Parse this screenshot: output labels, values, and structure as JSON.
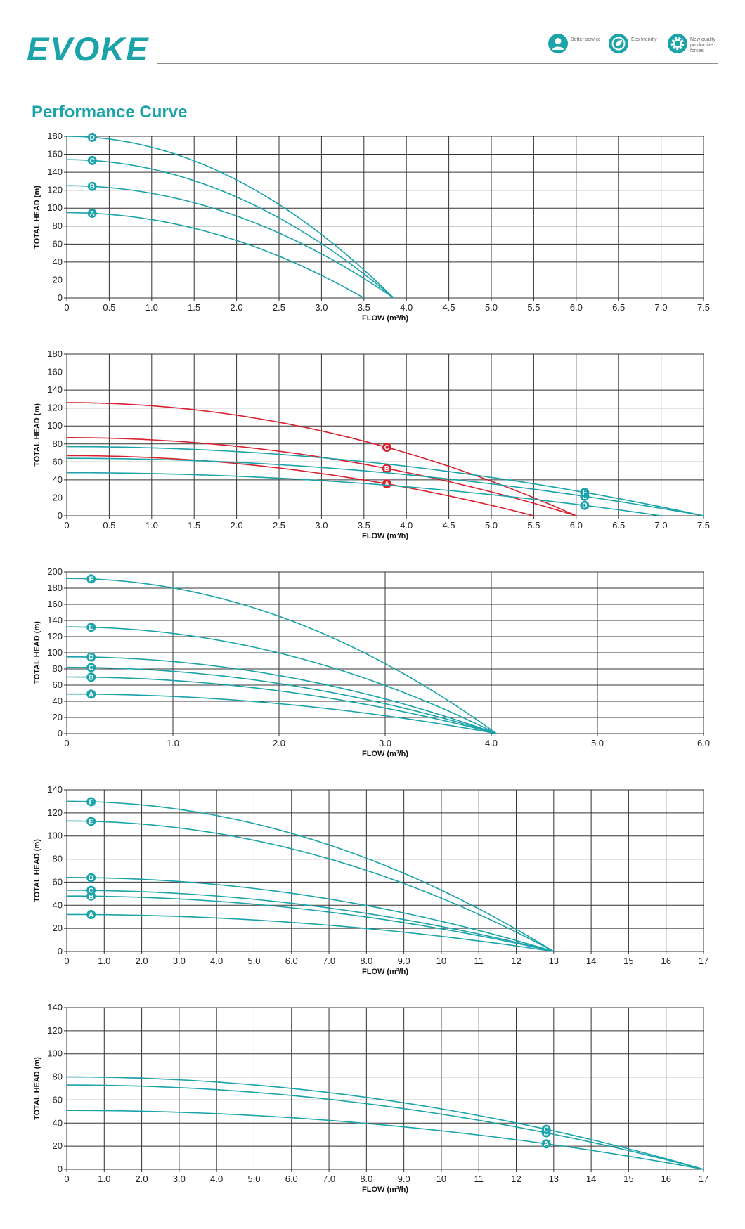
{
  "header": {
    "logo_text": "EVOKE",
    "brand_color": "#1ba3aa",
    "badges": [
      {
        "icon": "person-service-icon",
        "text": "Better service"
      },
      {
        "icon": "eco-leaf-icon",
        "text": "Eco friendly"
      },
      {
        "icon": "gear-icon",
        "text": "New quality productive forces"
      }
    ]
  },
  "page_title": "Performance Curve",
  "colors": {
    "teal": "#1ba3aa",
    "red": "#d8222f",
    "grid": "#333333"
  },
  "chart_data": [
    {
      "type": "line",
      "xlabel": "FLOW (m³/h)",
      "ylabel": "TOTAL  HEAD  (m)",
      "xlim": [
        0,
        7.5
      ],
      "ylim": [
        0,
        180
      ],
      "xticks": [
        "0",
        "0.5",
        "1.0",
        "1.5",
        "2.0",
        "2.5",
        "3.0",
        "3.5",
        "4.0",
        "4.5",
        "5.0",
        "5.5",
        "6.0",
        "6.5",
        "7.0",
        "7.5"
      ],
      "yticks": [
        "0",
        "20",
        "40",
        "60",
        "80",
        "100",
        "120",
        "140",
        "160",
        "180"
      ],
      "grid": true,
      "series": [
        {
          "name": "A",
          "color": "teal",
          "h0": 95,
          "qmax": 3.5,
          "exp": 2.0,
          "label_x": 0.3
        },
        {
          "name": "B",
          "color": "teal",
          "h0": 125,
          "qmax": 3.85,
          "exp": 2.0,
          "label_x": 0.3
        },
        {
          "name": "C",
          "color": "teal",
          "h0": 154,
          "qmax": 3.85,
          "exp": 2.0,
          "label_x": 0.3
        },
        {
          "name": "D",
          "color": "teal",
          "h0": 180,
          "qmax": 3.85,
          "exp": 2.0,
          "label_x": 0.3
        }
      ]
    },
    {
      "type": "line",
      "xlabel": "FLOW (m³/h)",
      "ylabel": "TOTAL  HEAD  (m)",
      "xlim": [
        0,
        7.5
      ],
      "ylim": [
        0,
        180
      ],
      "xticks": [
        "0",
        "0.5",
        "1.0",
        "1.5",
        "2.0",
        "2.5",
        "3.0",
        "3.5",
        "4.0",
        "4.5",
        "5.0",
        "5.5",
        "6.0",
        "6.5",
        "7.0",
        "7.5"
      ],
      "yticks": [
        "0",
        "20",
        "40",
        "60",
        "80",
        "100",
        "120",
        "140",
        "160",
        "180"
      ],
      "grid": true,
      "series": [
        {
          "name": "A",
          "color": "red",
          "h0": 67,
          "qmax": 5.5,
          "exp": 2.0,
          "label_x": 3.77
        },
        {
          "name": "B",
          "color": "red",
          "h0": 87,
          "qmax": 6.0,
          "exp": 2.0,
          "label_x": 3.77
        },
        {
          "name": "C",
          "color": "red",
          "h0": 126,
          "qmax": 6.0,
          "exp": 2.0,
          "label_x": 3.77
        },
        {
          "name": "D",
          "color": "teal",
          "h0": 48,
          "qmax": 7.0,
          "exp": 2.0,
          "label_x": 6.1
        },
        {
          "name": "E",
          "color": "teal",
          "h0": 64,
          "qmax": 7.5,
          "exp": 2.0,
          "label_x": 6.1
        },
        {
          "name": "F",
          "color": "teal",
          "h0": 77,
          "qmax": 7.5,
          "exp": 2.0,
          "label_x": 6.1
        }
      ]
    },
    {
      "type": "line",
      "xlabel": "FLOW (m³/h)",
      "ylabel": "TOTAL  HEAD  (m)",
      "xlim": [
        0,
        6.0
      ],
      "ylim": [
        0,
        200
      ],
      "xticks": [
        "0",
        "1.0",
        "2.0",
        "3.0",
        "4.0",
        "5.0",
        "6.0"
      ],
      "yticks": [
        "0",
        "20",
        "40",
        "60",
        "80",
        "100",
        "120",
        "140",
        "160",
        "180",
        "200"
      ],
      "grid": true,
      "series": [
        {
          "name": "A",
          "color": "teal",
          "h0": 49,
          "qmax": 4.05,
          "exp": 2.0,
          "label_x": 0.23
        },
        {
          "name": "B",
          "color": "teal",
          "h0": 70,
          "qmax": 4.05,
          "exp": 2.0,
          "label_x": 0.23
        },
        {
          "name": "C",
          "color": "teal",
          "h0": 82,
          "qmax": 4.05,
          "exp": 2.0,
          "label_x": 0.23
        },
        {
          "name": "D",
          "color": "teal",
          "h0": 95,
          "qmax": 4.05,
          "exp": 2.0,
          "label_x": 0.23
        },
        {
          "name": "E",
          "color": "teal",
          "h0": 132,
          "qmax": 4.05,
          "exp": 2.0,
          "label_x": 0.23
        },
        {
          "name": "F",
          "color": "teal",
          "h0": 192,
          "qmax": 4.05,
          "exp": 2.0,
          "label_x": 0.23
        }
      ]
    },
    {
      "type": "line",
      "xlabel": "FLOW (m³/h)",
      "ylabel": "TOTAL  HEAD  (m)",
      "xlim": [
        0,
        17
      ],
      "ylim": [
        0,
        140
      ],
      "xticks": [
        "0",
        "1.0",
        "2.0",
        "3.0",
        "4.0",
        "5.0",
        "6.0",
        "7.0",
        "8.0",
        "9.0",
        "10",
        "11",
        "12",
        "13",
        "14",
        "15",
        "16",
        "17"
      ],
      "yticks": [
        "0",
        "20",
        "40",
        "60",
        "80",
        "100",
        "120",
        "140"
      ],
      "grid": true,
      "series": [
        {
          "name": "A",
          "color": "teal",
          "h0": 32,
          "qmax": 13,
          "exp": 2.0,
          "label_x": 0.65
        },
        {
          "name": "B",
          "color": "teal",
          "h0": 48,
          "qmax": 13,
          "exp": 2.0,
          "label_x": 0.65
        },
        {
          "name": "C",
          "color": "teal",
          "h0": 53,
          "qmax": 13,
          "exp": 2.0,
          "label_x": 0.65
        },
        {
          "name": "D",
          "color": "teal",
          "h0": 64,
          "qmax": 13,
          "exp": 2.0,
          "label_x": 0.65
        },
        {
          "name": "E",
          "color": "teal",
          "h0": 113,
          "qmax": 13,
          "exp": 2.0,
          "label_x": 0.65
        },
        {
          "name": "F",
          "color": "teal",
          "h0": 130,
          "qmax": 13,
          "exp": 2.0,
          "label_x": 0.65
        }
      ]
    },
    {
      "type": "line",
      "xlabel": "FLOW (m³/h)",
      "ylabel": "TOTAL  HEAD  (m)",
      "xlim": [
        0,
        17
      ],
      "ylim": [
        0,
        140
      ],
      "xticks": [
        "0",
        "1.0",
        "2.0",
        "3.0",
        "4.0",
        "5.0",
        "6.0",
        "7.0",
        "8.0",
        "9.0",
        "10",
        "11",
        "12",
        "13",
        "14",
        "15",
        "16",
        "17"
      ],
      "yticks": [
        "0",
        "20",
        "40",
        "60",
        "80",
        "100",
        "120",
        "140"
      ],
      "grid": true,
      "series": [
        {
          "name": "A",
          "color": "teal",
          "h0": 51,
          "qmax": 17,
          "exp": 2.0,
          "label_x": 12.8
        },
        {
          "name": "B",
          "color": "teal",
          "h0": 73,
          "qmax": 17,
          "exp": 2.0,
          "label_x": 12.8
        },
        {
          "name": "C",
          "color": "teal",
          "h0": 80,
          "qmax": 17,
          "exp": 2.0,
          "label_x": 12.8
        }
      ]
    }
  ]
}
